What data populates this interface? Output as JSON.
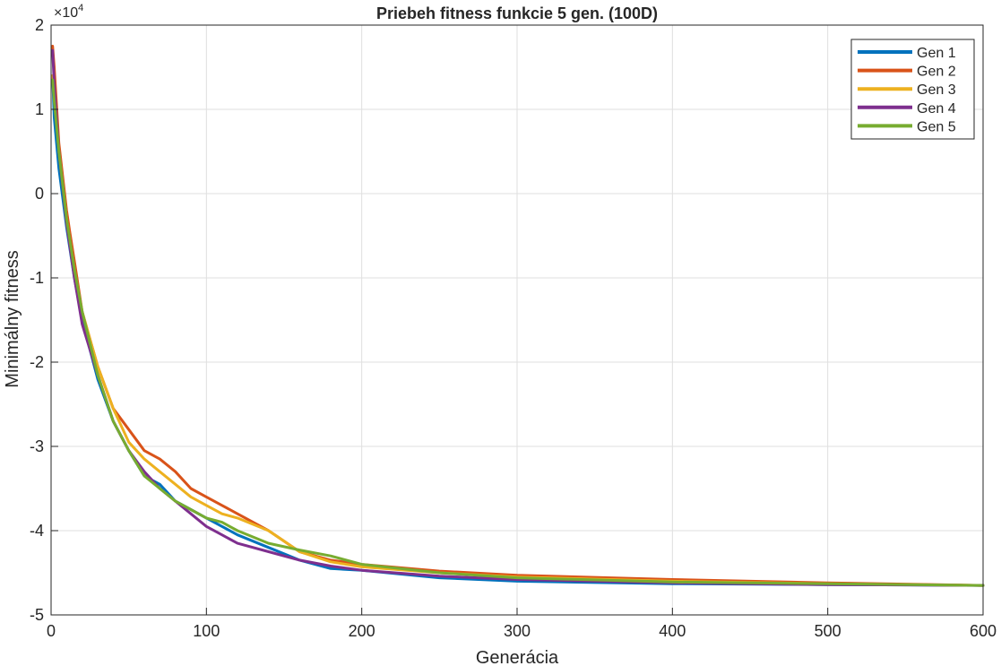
{
  "chart_data": {
    "type": "line",
    "title": "Priebeh fitness funkcie 5 gen. (100D)",
    "xlabel": "Generácia",
    "ylabel": "Minimálny fitness",
    "y_exponent_label": "×10",
    "y_exponent_power": "4",
    "xlim": [
      0,
      600
    ],
    "ylim": [
      -50000,
      20000
    ],
    "x_ticks": [
      0,
      100,
      200,
      300,
      400,
      500,
      600
    ],
    "x_tick_labels": [
      "0",
      "100",
      "200",
      "300",
      "400",
      "500",
      "600"
    ],
    "y_ticks": [
      -50000,
      -40000,
      -30000,
      -20000,
      -10000,
      0,
      10000,
      20000
    ],
    "y_tick_labels": [
      "-5",
      "-4",
      "-3",
      "-2",
      "-1",
      "0",
      "1",
      "2"
    ],
    "grid": true,
    "legend_position": "top-right",
    "series": [
      {
        "name": "Gen 1",
        "color": "#0072BD",
        "x": [
          1,
          2,
          5,
          10,
          15,
          20,
          30,
          40,
          50,
          60,
          70,
          80,
          90,
          100,
          110,
          120,
          140,
          160,
          180,
          200,
          250,
          300,
          400,
          500,
          600
        ],
        "y": [
          14000,
          9000,
          3000,
          -4000,
          -10000,
          -15000,
          -22000,
          -27000,
          -30500,
          -33500,
          -34500,
          -36500,
          -37500,
          -38500,
          -39500,
          -40500,
          -42000,
          -43500,
          -44500,
          -44700,
          -45600,
          -46000,
          -46300,
          -46400,
          -46500
        ]
      },
      {
        "name": "Gen 2",
        "color": "#D95319",
        "x": [
          1,
          2,
          5,
          10,
          12,
          15,
          20,
          30,
          40,
          50,
          60,
          70,
          80,
          90,
          100,
          110,
          120,
          140,
          160,
          180,
          200,
          250,
          300,
          400,
          500,
          600
        ],
        "y": [
          17500,
          15000,
          6000,
          -2000,
          -4500,
          -8000,
          -14000,
          -20500,
          -25500,
          -28000,
          -30500,
          -31500,
          -33000,
          -35000,
          -36000,
          -37000,
          -38000,
          -40000,
          -42500,
          -43500,
          -44000,
          -44800,
          -45300,
          -45800,
          -46200,
          -46500
        ]
      },
      {
        "name": "Gen 3",
        "color": "#EDB120",
        "x": [
          1,
          2,
          5,
          10,
          15,
          20,
          30,
          40,
          50,
          60,
          70,
          80,
          90,
          100,
          110,
          120,
          140,
          160,
          180,
          200,
          250,
          300,
          400,
          500,
          600
        ],
        "y": [
          14000,
          12000,
          5000,
          -3000,
          -9000,
          -14000,
          -20500,
          -25500,
          -29500,
          -31500,
          -33000,
          -34500,
          -36000,
          -37000,
          -38000,
          -38500,
          -40000,
          -42500,
          -43700,
          -44300,
          -45000,
          -45500,
          -46000,
          -46300,
          -46500
        ]
      },
      {
        "name": "Gen 4",
        "color": "#7E2F8E",
        "x": [
          1,
          2,
          5,
          10,
          15,
          20,
          30,
          40,
          50,
          60,
          70,
          80,
          90,
          100,
          110,
          120,
          140,
          160,
          180,
          200,
          250,
          300,
          400,
          500,
          600
        ],
        "y": [
          17000,
          13000,
          5000,
          -3500,
          -10000,
          -15500,
          -21500,
          -27000,
          -30500,
          -33000,
          -35000,
          -36500,
          -38000,
          -39500,
          -40500,
          -41500,
          -42500,
          -43500,
          -44200,
          -44700,
          -45400,
          -45800,
          -46200,
          -46400,
          -46500
        ]
      },
      {
        "name": "Gen 5",
        "color": "#77AC30",
        "x": [
          1,
          2,
          5,
          10,
          15,
          20,
          30,
          40,
          50,
          60,
          70,
          80,
          90,
          100,
          110,
          120,
          140,
          160,
          180,
          200,
          250,
          300,
          400,
          500,
          600
        ],
        "y": [
          13500,
          11000,
          5000,
          -3000,
          -9000,
          -14000,
          -21500,
          -27000,
          -30500,
          -33500,
          -35000,
          -36500,
          -37500,
          -38500,
          -39000,
          -40000,
          -41500,
          -42300,
          -43000,
          -44000,
          -45000,
          -45600,
          -46100,
          -46300,
          -46500
        ]
      }
    ]
  }
}
